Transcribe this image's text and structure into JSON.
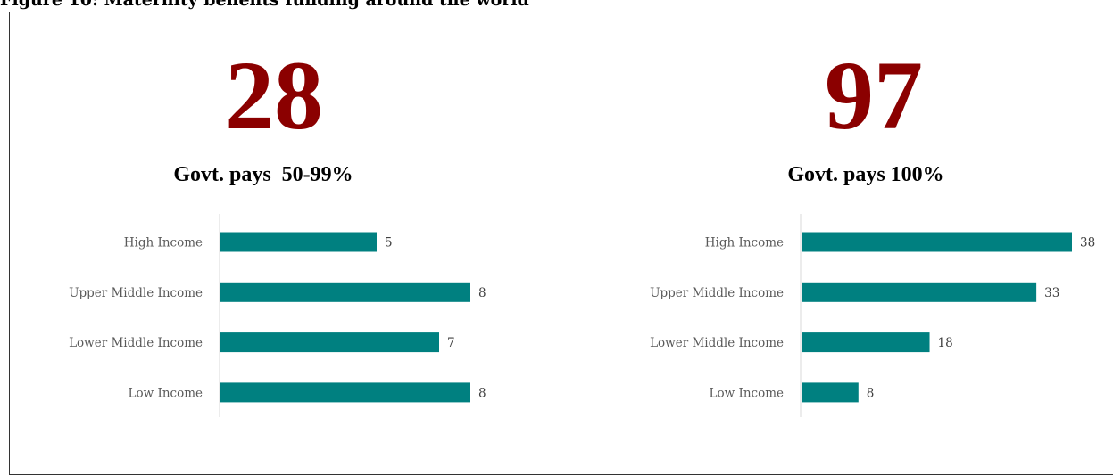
{
  "figure_title": "Figure 10: Maternity benefits funding around the world",
  "colors": {
    "headline": "#8b0000",
    "bar": "#008080",
    "axis": "#d9d9d9"
  },
  "panels": [
    {
      "count": "28",
      "subtitle": "Govt. pays  50-99%"
    },
    {
      "count": "97",
      "subtitle": "Govt. pays 100%"
    }
  ],
  "chart_data": [
    {
      "type": "bar",
      "orientation": "horizontal",
      "categories": [
        "High Income",
        "Upper Middle Income",
        "Lower Middle Income",
        "Low Income"
      ],
      "values": [
        5,
        8,
        7,
        8
      ],
      "xlim": [
        0,
        8
      ],
      "grid": false,
      "data_labels": true
    },
    {
      "type": "bar",
      "orientation": "horizontal",
      "categories": [
        "High Income",
        "Upper Middle Income",
        "Lower Middle Income",
        "Low Income"
      ],
      "values": [
        38,
        33,
        18,
        8
      ],
      "xlim": [
        0,
        38
      ],
      "grid": false,
      "data_labels": true
    }
  ]
}
